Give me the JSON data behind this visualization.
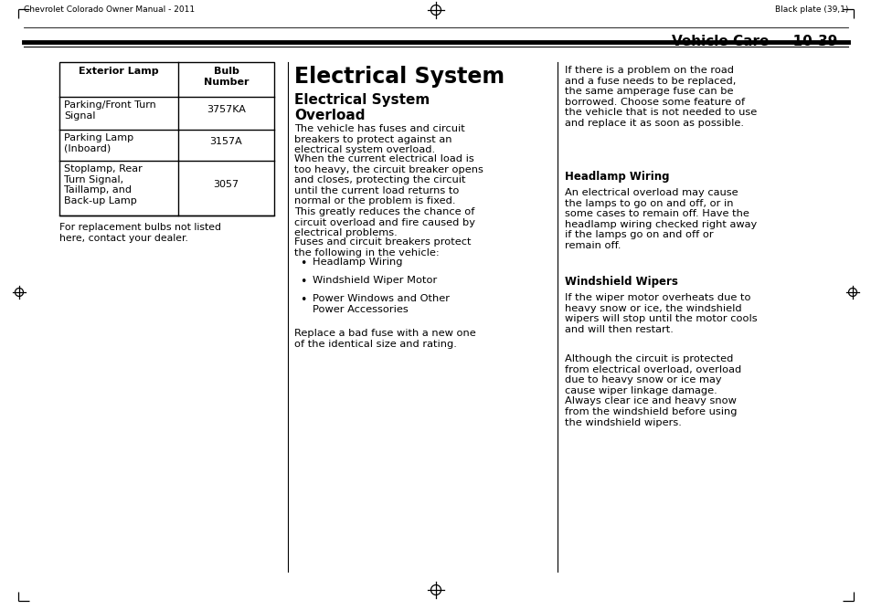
{
  "page_bg": "#ffffff",
  "header_left": "Chevrolet Colorado Owner Manual - 2011",
  "header_right": "Black plate (39,1)",
  "section_label": "Vehicle Care",
  "page_number": "10-39",
  "table_header_col1": "Exterior Lamp",
  "table_header_col2": "Bulb\nNumber",
  "table_rows": [
    [
      "Parking/Front Turn\nSignal",
      "3757KA"
    ],
    [
      "Parking Lamp\n(Inboard)",
      "3157A"
    ],
    [
      "Stoplamp, Rear\nTurn Signal,\nTaillamp, and\nBack-up Lamp",
      "3057"
    ]
  ],
  "table_note": "For replacement bulbs not listed\nhere, contact your dealer.",
  "main_title": "Electrical System",
  "sub_title": "Electrical System\nOverload",
  "col2_para1": "The vehicle has fuses and circuit\nbreakers to protect against an\nelectrical system overload.",
  "col2_para2": "When the current electrical load is\ntoo heavy, the circuit breaker opens\nand closes, protecting the circuit\nuntil the current load returns to\nnormal or the problem is fixed.\nThis greatly reduces the chance of\ncircuit overload and fire caused by\nelectrical problems.",
  "col2_para3": "Fuses and circuit breakers protect\nthe following in the vehicle:",
  "col2_bullets": [
    "Headlamp Wiring",
    "Windshield Wiper Motor",
    "Power Windows and Other\nPower Accessories"
  ],
  "col2_para4": "Replace a bad fuse with a new one\nof the identical size and rating.",
  "col3_para1": "If there is a problem on the road\nand a fuse needs to be replaced,\nthe same amperage fuse can be\nborrowed. Choose some feature of\nthe vehicle that is not needed to use\nand replace it as soon as possible.",
  "col3_head1": "Headlamp Wiring",
  "col3_para2": "An electrical overload may cause\nthe lamps to go on and off, or in\nsome cases to remain off. Have the\nheadlamp wiring checked right away\nif the lamps go on and off or\nremain off.",
  "col3_head2": "Windshield Wipers",
  "col3_para3": "If the wiper motor overheats due to\nheavy snow or ice, the windshield\nwipers will stop until the motor cools\nand will then restart.",
  "col3_para4": "Although the circuit is protected\nfrom electrical overload, overload\ndue to heavy snow or ice may\ncause wiper linkage damage.\nAlways clear ice and heavy snow\nfrom the windshield before using\nthe windshield wipers."
}
